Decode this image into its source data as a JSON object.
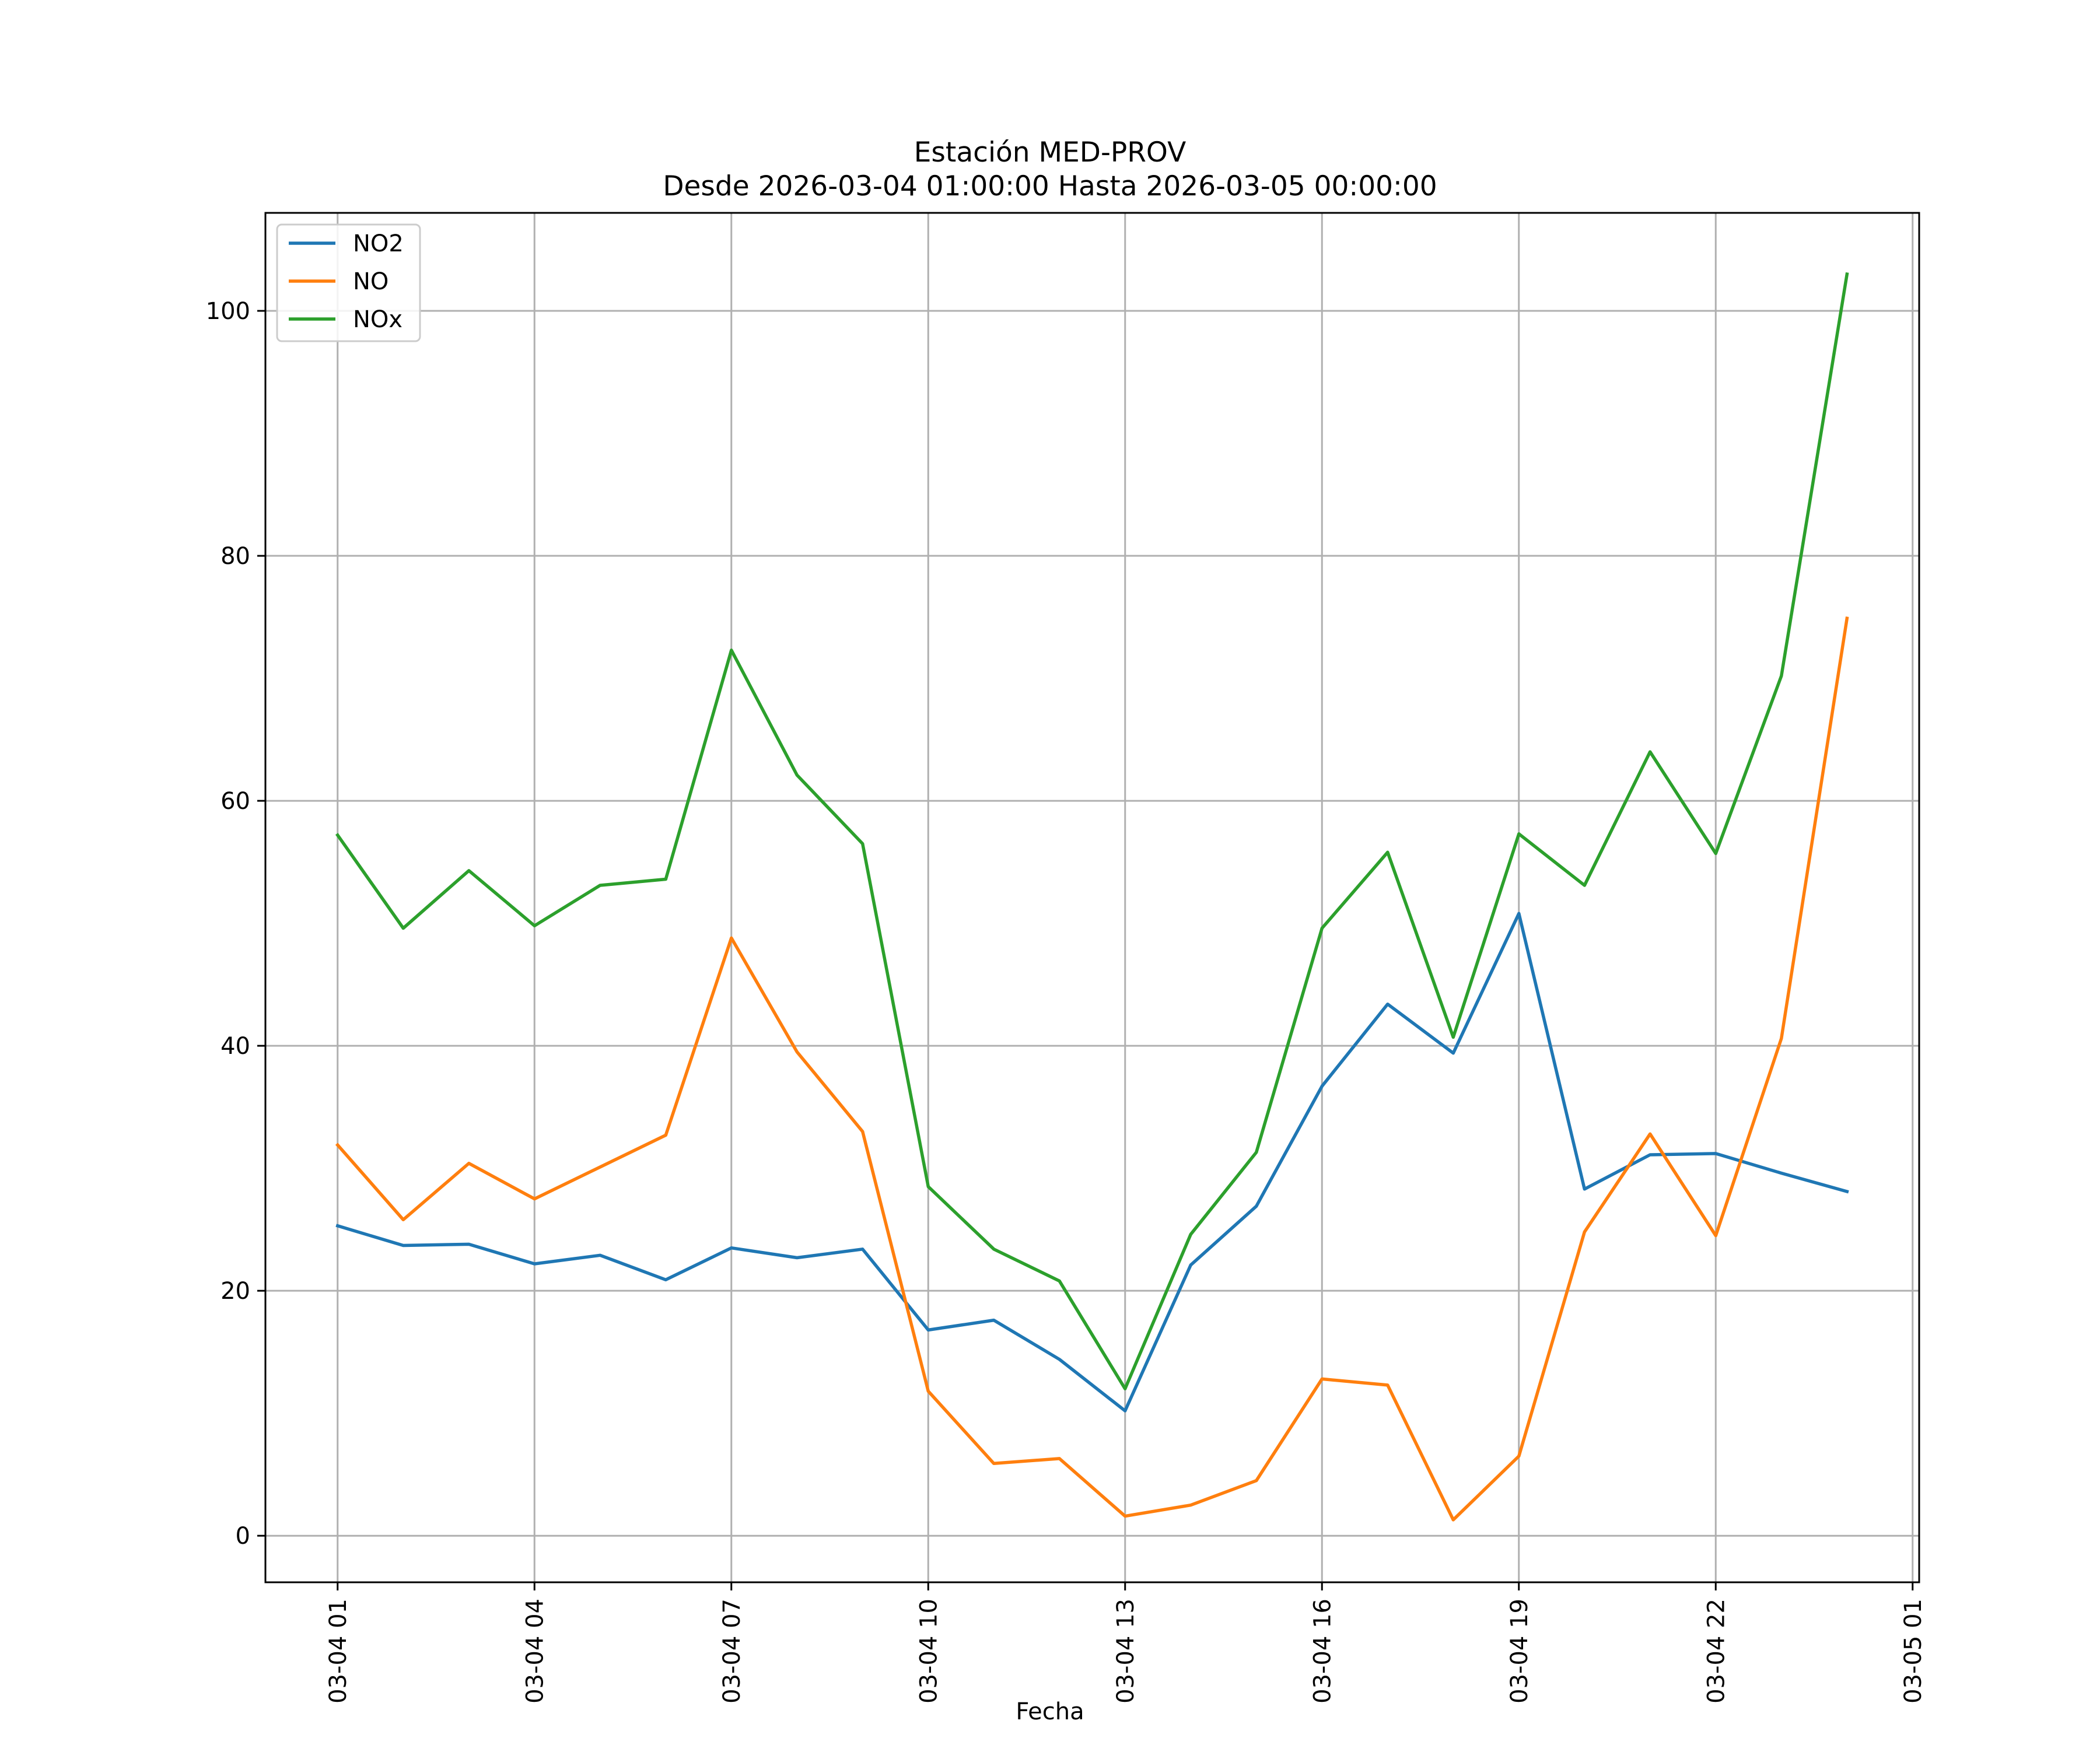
{
  "chart_data": {
    "type": "line",
    "title": "Estación MED-PROV",
    "subtitle": "Desde 2026-03-04 01:00:00 Hasta 2026-03-05 00:00:00",
    "xlabel": "Fecha",
    "ylabel": "",
    "x": [
      "03-04 01",
      "03-04 02",
      "03-04 03",
      "03-04 04",
      "03-04 05",
      "03-04 06",
      "03-04 07",
      "03-04 08",
      "03-04 09",
      "03-04 10",
      "03-04 11",
      "03-04 12",
      "03-04 13",
      "03-04 14",
      "03-04 15",
      "03-04 16",
      "03-04 17",
      "03-04 18",
      "03-04 19",
      "03-04 20",
      "03-04 21",
      "03-04 22",
      "03-04 23",
      "03-05 00"
    ],
    "xticks": [
      "03-04 01",
      "03-04 04",
      "03-04 07",
      "03-04 10",
      "03-04 13",
      "03-04 16",
      "03-04 19",
      "03-04 22",
      "03-05 01"
    ],
    "xlim_hours": [
      -1.1,
      24.1
    ],
    "yticks": [
      0,
      20,
      40,
      60,
      80,
      100
    ],
    "ylim": [
      -3.8,
      108
    ],
    "grid": true,
    "legend": "top-left",
    "series": [
      {
        "name": "NO2",
        "color": "#1f77b4",
        "values": [
          25.3,
          23.7,
          23.8,
          22.2,
          22.9,
          20.9,
          23.5,
          22.7,
          23.4,
          16.8,
          17.6,
          14.4,
          10.2,
          22.1,
          26.9,
          36.7,
          43.4,
          39.4,
          50.8,
          28.3,
          31.1,
          31.2,
          29.6,
          28.1
        ]
      },
      {
        "name": "NO",
        "color": "#ff7f0e",
        "values": [
          31.9,
          25.8,
          30.4,
          27.5,
          30.1,
          32.7,
          48.8,
          39.5,
          33.0,
          11.8,
          5.9,
          6.3,
          1.6,
          2.5,
          4.5,
          12.8,
          12.3,
          1.3,
          6.5,
          24.8,
          32.8,
          24.5,
          40.6,
          74.9
        ]
      },
      {
        "name": "NOx",
        "color": "#2ca02c",
        "values": [
          57.2,
          49.6,
          54.3,
          49.8,
          53.1,
          53.6,
          72.3,
          62.1,
          56.5,
          28.5,
          23.4,
          20.8,
          12.0,
          24.6,
          31.3,
          49.6,
          55.8,
          40.7,
          57.3,
          53.1,
          64.0,
          55.7,
          70.2,
          103.0
        ]
      }
    ]
  }
}
